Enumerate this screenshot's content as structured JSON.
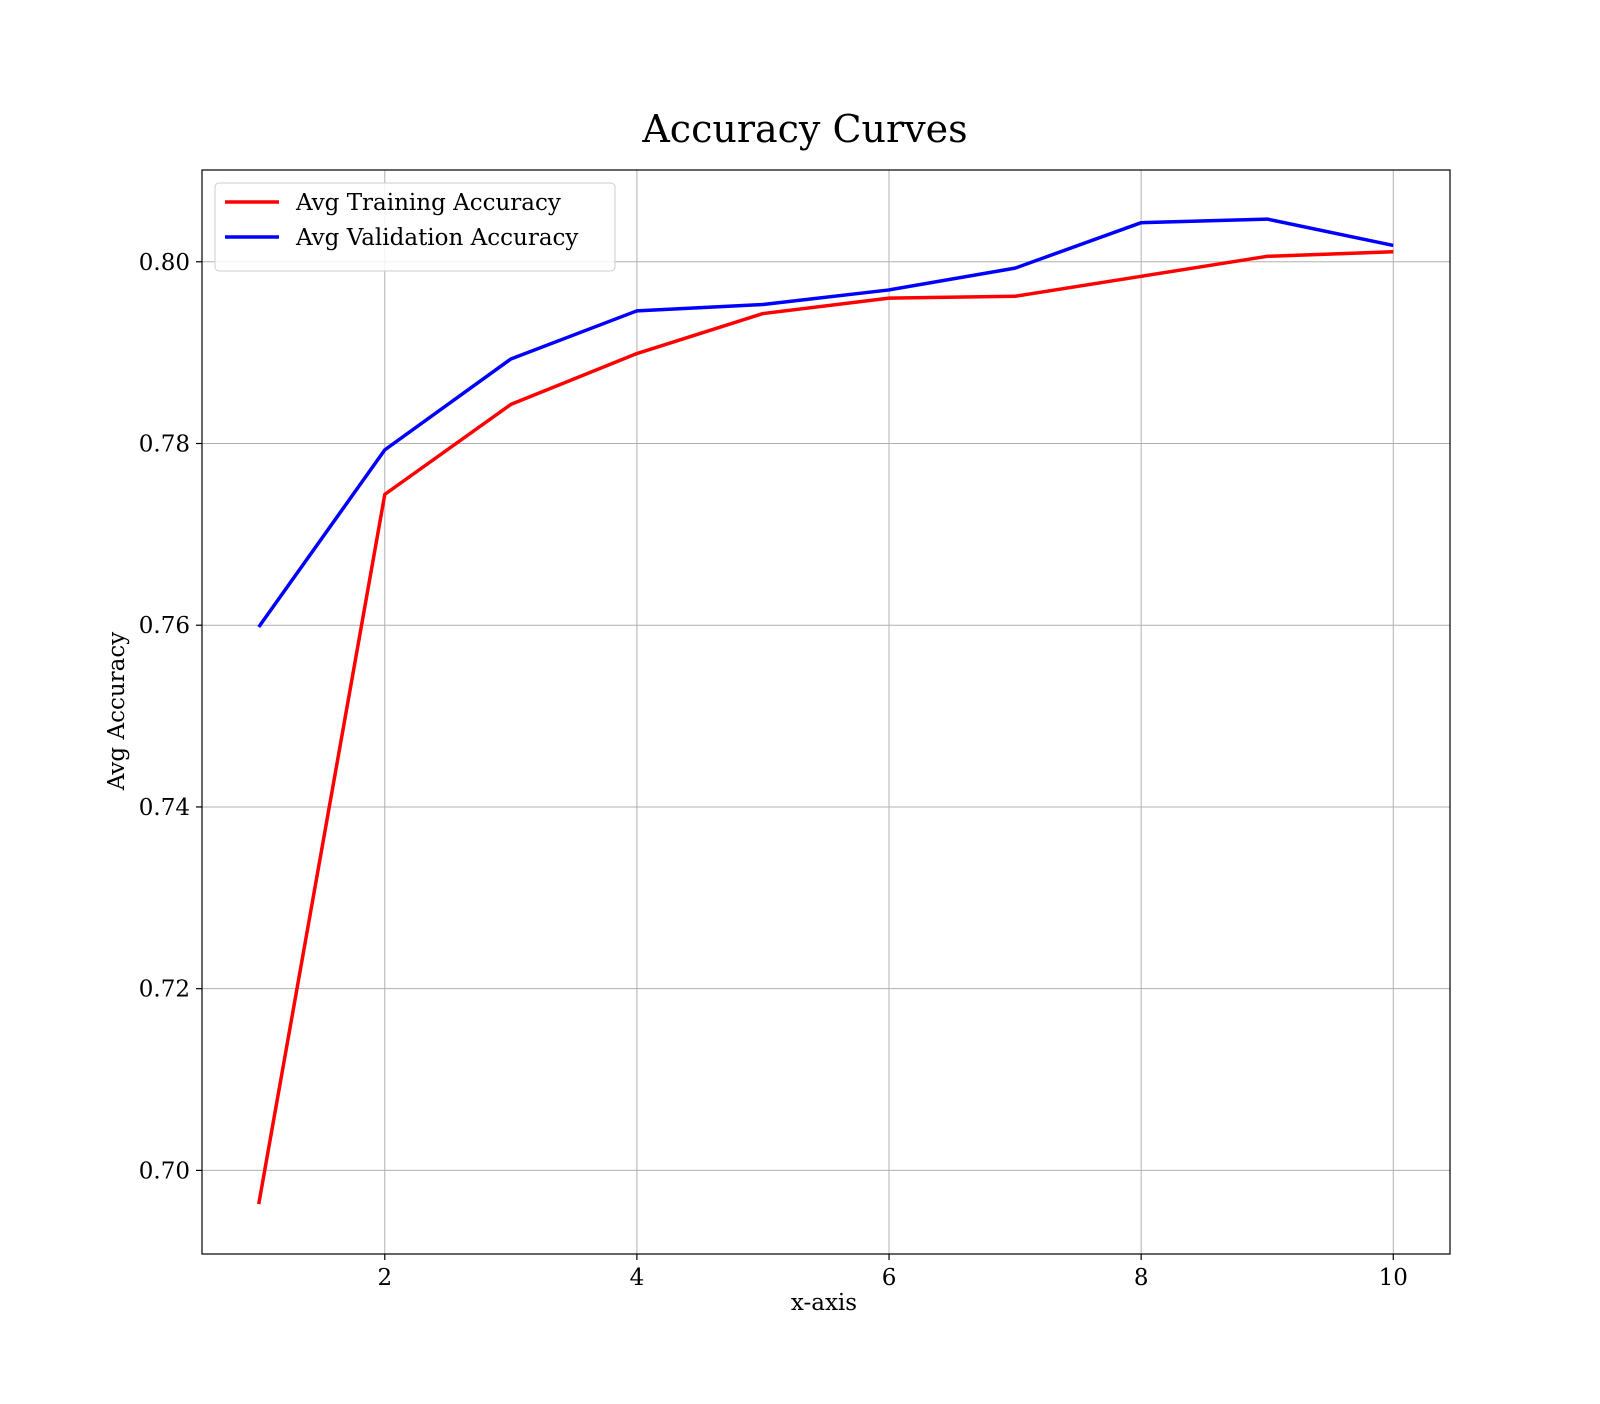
{
  "chart_data": {
    "type": "line",
    "title": "Accuracy Curves",
    "xlabel": "x-axis",
    "ylabel": "Avg Accuracy",
    "x": [
      1,
      2,
      3,
      4,
      5,
      6,
      7,
      8,
      9,
      10
    ],
    "xlim": [
      0.55,
      10.45
    ],
    "ylim": [
      0.6908,
      0.8101
    ],
    "xticks": [
      2,
      4,
      6,
      8,
      10
    ],
    "xtick_labels": [
      "2",
      "4",
      "6",
      "8",
      "10"
    ],
    "yticks": [
      0.7,
      0.72,
      0.74,
      0.76,
      0.78,
      0.8
    ],
    "ytick_labels": [
      "0.70",
      "0.72",
      "0.74",
      "0.76",
      "0.78",
      "0.80"
    ],
    "grid": true,
    "legend_position": "top-left",
    "series": [
      {
        "name": "Avg Training Accuracy",
        "color": "#ff0000",
        "values": [
          0.6963,
          0.7744,
          0.7843,
          0.7899,
          0.7943,
          0.796,
          0.7962,
          0.7984,
          0.8006,
          0.8011
        ]
      },
      {
        "name": "Avg Validation Accuracy",
        "color": "#0000ff",
        "values": [
          0.7598,
          0.7793,
          0.7893,
          0.7946,
          0.7953,
          0.7969,
          0.7993,
          0.8043,
          0.8047,
          0.8018
        ]
      }
    ]
  }
}
